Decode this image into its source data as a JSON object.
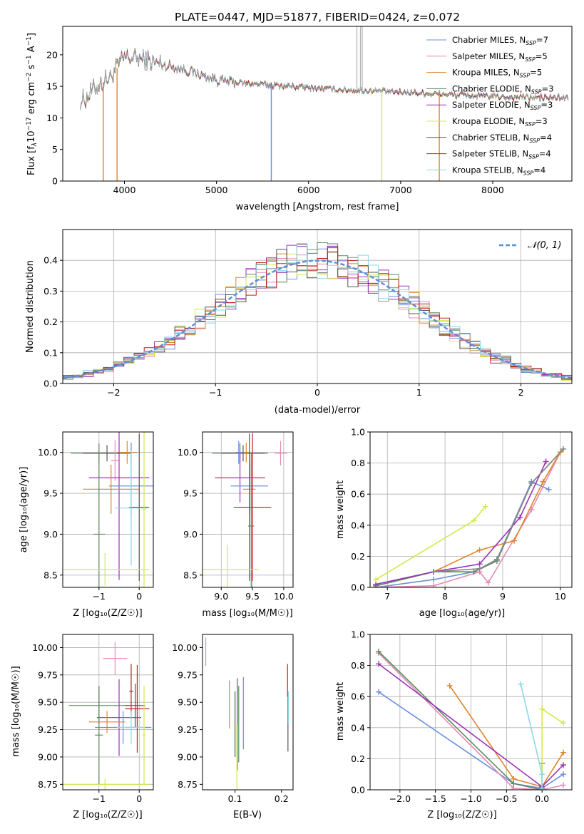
{
  "chart_data": [
    {
      "id": "spectrum",
      "type": "line",
      "title": "PLATE=0447, MJD=51877, FIBERID=0424, z=0.072",
      "xlabel": "wavelength [Angstrom, rest frame]",
      "ylabel_parts": [
        "Flux [f",
        "λ",
        "10",
        "−17",
        " erg cm",
        "−2",
        " s",
        "−1",
        " A",
        "−1",
        "]"
      ],
      "xlim": [
        3330,
        8860
      ],
      "ylim": [
        0,
        24.5
      ],
      "xticks": [
        4000,
        5000,
        6000,
        7000,
        8000
      ],
      "yticks": [
        0,
        5,
        10,
        15,
        20
      ],
      "grid": false,
      "legend_position": "top-right",
      "legend": [
        {
          "model": "Chabrier MILES",
          "nssp": "7",
          "color": "#6a8fdc"
        },
        {
          "model": "Salpeter MILES",
          "nssp": "5",
          "color": "#e58ab8"
        },
        {
          "model": "Kroupa MILES",
          "nssp": "5",
          "color": "#e0842a"
        },
        {
          "model": "Chabrier ELODIE",
          "nssp": "3",
          "color": "#5e8a5e"
        },
        {
          "model": "Salpeter ELODIE",
          "nssp": "3",
          "color": "#9a32b8"
        },
        {
          "model": "Kroupa ELODIE",
          "nssp": "3",
          "color": "#d4e84a"
        },
        {
          "model": "Chabrier STELIB",
          "nssp": "4",
          "color": "#555555"
        },
        {
          "model": "Salpeter STELIB",
          "nssp": "4",
          "color": "#c02020"
        },
        {
          "model": "Kroupa STELIB",
          "nssp": "4",
          "color": "#8ad8e8"
        }
      ],
      "continuum": {
        "x": [
          3550,
          3700,
          3850,
          4000,
          4150,
          4300,
          4500,
          4700,
          4900,
          5100,
          5300,
          5500,
          5700,
          6000,
          6300,
          6600,
          7000,
          7400,
          7800,
          8200,
          8600,
          8800
        ],
        "y": [
          12.8,
          15.0,
          16.5,
          19.5,
          19.5,
          18.8,
          18.2,
          17.5,
          16.4,
          15.8,
          15.5,
          15.3,
          15.1,
          14.8,
          14.5,
          14.3,
          14.1,
          13.8,
          13.5,
          13.3,
          13.2,
          13.2
        ]
      },
      "absorption_features": [
        {
          "x": 3770,
          "y": 0
        },
        {
          "x": 3920,
          "y": 0
        },
        {
          "x": 5595,
          "y": 0
        },
        {
          "x": 6795,
          "y": 0
        },
        {
          "x": 7420,
          "y": 0
        }
      ],
      "emission_features": [
        {
          "x": 6525,
          "y": 24.5
        },
        {
          "x": 6563,
          "y": 24.5
        },
        {
          "x": 6583,
          "y": 24.5
        }
      ]
    },
    {
      "id": "residuals",
      "type": "histogram",
      "xlabel": "(data-model)/error",
      "ylabel": "Normed distribution",
      "xlim": [
        -2.5,
        2.5
      ],
      "ylim": [
        0,
        0.5
      ],
      "xticks": [
        -2,
        -1,
        0,
        1,
        2
      ],
      "yticks": [
        0.0,
        0.1,
        0.2,
        0.3,
        0.4
      ],
      "grid": true,
      "legend_position": "top-right",
      "legend_label": "𝒩(0, 1)",
      "bin_width": 0.1
    },
    {
      "id": "age_vs_Z",
      "type": "scatter",
      "xlabel": "Z [log₁₀(Z/Z☉)]",
      "ylabel": "age  [log₁₀(age/yr)]",
      "xlim": [
        -1.9,
        0.35
      ],
      "ylim": [
        8.35,
        10.25
      ],
      "xticks": [
        -1,
        0
      ],
      "yticks": [
        8.5,
        9.0,
        9.5,
        10.0
      ],
      "grid": true,
      "points": [
        {
          "x": -1.0,
          "y": 9.99,
          "xerr": 0.7,
          "yerr": 0.12,
          "color": "#5e8a5e"
        },
        {
          "x": -0.8,
          "y": 9.99,
          "xerr": 0.6,
          "yerr": 0.1,
          "color": "#555555"
        },
        {
          "x": -0.2,
          "y": 10.0,
          "xerr": 0.15,
          "yerr": 0.12,
          "color": "#6a8fdc"
        },
        {
          "x": -0.3,
          "y": 10.0,
          "xerr": 0.25,
          "yerr": 0.14,
          "color": "#e0842a"
        },
        {
          "x": -0.6,
          "y": 9.9,
          "xerr": 0.1,
          "yerr": 0.25,
          "color": "#e58ab8"
        },
        {
          "x": -0.5,
          "y": 9.69,
          "xerr": 0.75,
          "yerr": 1.25,
          "color": "#9a32b8"
        },
        {
          "x": -0.2,
          "y": 9.59,
          "xerr": 0.55,
          "yerr": 0.4,
          "color": "#6a8fdc"
        },
        {
          "x": -0.7,
          "y": 9.55,
          "xerr": 0.7,
          "yerr": 0.3,
          "color": "#e0842a"
        },
        {
          "x": 0.0,
          "y": 9.33,
          "xerr": 0.25,
          "yerr": 0.9,
          "color": "#555555"
        },
        {
          "x": -0.2,
          "y": 9.32,
          "xerr": 0.4,
          "yerr": 0.7,
          "color": "#8ad8e8"
        },
        {
          "x": -1.0,
          "y": 9.0,
          "xerr": 0.15,
          "yerr": 1.0,
          "color": "#5e8a5e"
        },
        {
          "x": -0.85,
          "y": 8.57,
          "xerr": 1.1,
          "yerr": 0.2,
          "color": "#d4e84a"
        },
        {
          "x": 0.12,
          "y": 9.3,
          "xerr": 0.05,
          "yerr": 0.95,
          "color": "#d4e84a"
        }
      ]
    },
    {
      "id": "age_vs_mass",
      "type": "scatter",
      "xlabel": "mass [log₁₀(M/M☉)]",
      "ylabel": "",
      "xlim": [
        8.7,
        10.15
      ],
      "ylim": [
        8.35,
        10.25
      ],
      "xticks": [
        9.0,
        9.5,
        10.0
      ],
      "yticks": [
        8.5,
        9.0,
        9.5,
        10.0
      ],
      "grid": true,
      "points": [
        {
          "x": 9.3,
          "y": 9.99,
          "xerr": 0.45,
          "yerr": 0.12,
          "color": "#5e8a5e"
        },
        {
          "x": 9.35,
          "y": 9.99,
          "xerr": 0.35,
          "yerr": 0.1,
          "color": "#555555"
        },
        {
          "x": 9.95,
          "y": 9.99,
          "xerr": 0.1,
          "yerr": 0.15,
          "color": "#e58ab8"
        },
        {
          "x": 9.28,
          "y": 10.0,
          "xerr": 0.05,
          "yerr": 0.14,
          "color": "#6a8fdc"
        },
        {
          "x": 9.4,
          "y": 10.0,
          "xerr": 0.05,
          "yerr": 0.12,
          "color": "#e0842a"
        },
        {
          "x": 9.3,
          "y": 9.69,
          "xerr": 0.4,
          "yerr": 0.3,
          "color": "#9a32b8"
        },
        {
          "x": 9.45,
          "y": 9.59,
          "xerr": 0.3,
          "yerr": 0.3,
          "color": "#6a8fdc"
        },
        {
          "x": 9.45,
          "y": 9.55,
          "xerr": 0.1,
          "yerr": 0.3,
          "color": "#e0842a"
        },
        {
          "x": 9.5,
          "y": 9.33,
          "xerr": 0.3,
          "yerr": 0.9,
          "color": "#c02020"
        },
        {
          "x": 9.45,
          "y": 9.33,
          "xerr": 0.2,
          "yerr": 0.9,
          "color": "#555555"
        },
        {
          "x": 9.48,
          "y": 9.1,
          "xerr": 0.05,
          "yerr": 0.9,
          "color": "#5e8a5e"
        },
        {
          "x": 9.1,
          "y": 8.57,
          "xerr": 0.5,
          "yerr": 0.3,
          "color": "#d4e84a"
        }
      ]
    },
    {
      "id": "massweight_vs_age",
      "type": "line",
      "xlabel": "age  [log₁₀(age/yr)]",
      "ylabel": "mass weight",
      "xlim": [
        6.7,
        10.2
      ],
      "ylim": [
        0,
        1.0
      ],
      "xticks": [
        7,
        8,
        9,
        10
      ],
      "yticks": [
        0.0,
        0.2,
        0.4,
        0.6,
        0.8,
        1.0
      ],
      "grid": true,
      "series": [
        {
          "color": "#6a8fdc",
          "x": [
            6.8,
            7.8,
            8.5,
            8.9,
            9.5,
            9.8
          ],
          "y": [
            0.0,
            0.05,
            0.1,
            0.18,
            0.68,
            0.63
          ]
        },
        {
          "color": "#e58ab8",
          "x": [
            6.8,
            7.8,
            8.6,
            8.75,
            9.5,
            10.0
          ],
          "y": [
            0.0,
            0.01,
            0.1,
            0.03,
            0.5,
            0.87
          ]
        },
        {
          "color": "#e0842a",
          "x": [
            6.8,
            7.8,
            8.6,
            9.2,
            9.7,
            10.0
          ],
          "y": [
            0.01,
            0.1,
            0.24,
            0.3,
            0.68,
            0.87
          ]
        },
        {
          "color": "#5e8a5e",
          "x": [
            6.8,
            7.8,
            8.5,
            8.9,
            9.5,
            10.05
          ],
          "y": [
            0.01,
            0.1,
            0.1,
            0.17,
            0.67,
            0.89
          ]
        },
        {
          "color": "#9a32b8",
          "x": [
            6.8,
            7.8,
            8.6,
            9.3,
            9.75
          ],
          "y": [
            0.02,
            0.1,
            0.15,
            0.45,
            0.81
          ]
        },
        {
          "color": "#d4e84a",
          "x": [
            6.8,
            8.5,
            8.7
          ],
          "y": [
            0.05,
            0.43,
            0.52
          ]
        },
        {
          "color": "#888888",
          "x": [
            7.8,
            8.6,
            8.9,
            9.5,
            10.05
          ],
          "y": [
            0.1,
            0.12,
            0.18,
            0.67,
            0.89
          ]
        }
      ]
    },
    {
      "id": "mass_vs_Z",
      "type": "scatter",
      "xlabel": "Z [log₁₀(Z/Z☉)]",
      "ylabel": "mass [log₁₀(M/M☉)]",
      "xlim": [
        -1.9,
        0.35
      ],
      "ylim": [
        8.7,
        10.12
      ],
      "xticks": [
        -1,
        0
      ],
      "yticks": [
        8.75,
        9.0,
        9.25,
        9.5,
        9.75,
        10.0
      ],
      "grid": true,
      "points": [
        {
          "x": -0.6,
          "y": 9.9,
          "xerr": 0.3,
          "yerr": 0.15,
          "color": "#e58ab8"
        },
        {
          "x": -0.2,
          "y": 9.6,
          "xerr": 0.05,
          "yerr": 0.25,
          "color": "#c02020"
        },
        {
          "x": -1.0,
          "y": 9.47,
          "xerr": 0.75,
          "yerr": 0.17,
          "color": "#5e8a5e"
        },
        {
          "x": -0.1,
          "y": 9.47,
          "xerr": 0.25,
          "yerr": 0.2,
          "color": "#555555"
        },
        {
          "x": -0.05,
          "y": 9.44,
          "xerr": 0.3,
          "yerr": 0.4,
          "color": "#c02020"
        },
        {
          "x": -0.5,
          "y": 9.36,
          "xerr": 0.55,
          "yerr": 0.35,
          "color": "#9a32b8"
        },
        {
          "x": -0.8,
          "y": 9.32,
          "xerr": 0.45,
          "yerr": 0.1,
          "color": "#e0842a"
        },
        {
          "x": -0.4,
          "y": 9.27,
          "xerr": 0.7,
          "yerr": 0.15,
          "color": "#6a8fdc"
        },
        {
          "x": -0.2,
          "y": 9.27,
          "xerr": 0.35,
          "yerr": 0.15,
          "color": "#8ad8e8"
        },
        {
          "x": -1.0,
          "y": 9.2,
          "xerr": 0.1,
          "yerr": 0.45,
          "color": "#5e8a5e"
        },
        {
          "x": -0.85,
          "y": 8.75,
          "xerr": 1.1,
          "yerr": 0.05,
          "color": "#d4e84a"
        },
        {
          "x": 0.12,
          "y": 9.2,
          "xerr": 0.04,
          "yerr": 0.45,
          "color": "#d4e84a"
        }
      ]
    },
    {
      "id": "mass_vs_ebv",
      "type": "scatter",
      "xlabel": "E(B-V)",
      "ylabel": "",
      "xlim": [
        0.03,
        0.225
      ],
      "ylim": [
        8.7,
        10.12
      ],
      "xticks": [
        0.1,
        0.2
      ],
      "yticks": [
        8.75,
        9.0,
        9.25,
        9.5,
        9.75,
        10.0
      ],
      "grid": false,
      "points": [
        {
          "x": 0.037,
          "y": 9.96,
          "xerr": 0.0,
          "yerr": 0.13,
          "color": "#e58ab8"
        },
        {
          "x": 0.088,
          "y": 9.48,
          "xerr": 0.0,
          "yerr": 0.22,
          "color": "#e0842a"
        },
        {
          "x": 0.1,
          "y": 9.3,
          "xerr": 0.0,
          "yerr": 0.3,
          "color": "#555555"
        },
        {
          "x": 0.105,
          "y": 9.3,
          "xerr": 0.0,
          "yerr": 0.42,
          "color": "#9a32b8"
        },
        {
          "x": 0.104,
          "y": 9.0,
          "xerr": 0.0,
          "yerr": 0.3,
          "color": "#d4e84a"
        },
        {
          "x": 0.108,
          "y": 9.3,
          "xerr": 0.0,
          "yerr": 0.35,
          "color": "#5e8a5e"
        },
        {
          "x": 0.118,
          "y": 9.4,
          "xerr": 0.0,
          "yerr": 0.33,
          "color": "#6a8fdc"
        },
        {
          "x": 0.213,
          "y": 9.7,
          "xerr": 0.0,
          "yerr": 0.15,
          "color": "#c02020"
        },
        {
          "x": 0.214,
          "y": 9.3,
          "xerr": 0.0,
          "yerr": 0.25,
          "color": "#555555"
        },
        {
          "x": 0.215,
          "y": 9.45,
          "xerr": 0.0,
          "yerr": 0.15,
          "color": "#8ad8e8"
        }
      ]
    },
    {
      "id": "massweight_vs_Z",
      "type": "line",
      "xlabel": "Z [log₁₀(Z/Z☉)]",
      "ylabel": "mass weight",
      "xlim": [
        -2.42,
        0.42
      ],
      "ylim": [
        0,
        1.0
      ],
      "xticks": [
        -2.0,
        -1.5,
        -1.0,
        -0.5,
        0.0
      ],
      "yticks": [
        0.0,
        0.2,
        0.4,
        0.6,
        0.8,
        1.0
      ],
      "grid": true,
      "series": [
        {
          "color": "#6a8fdc",
          "x": [
            -2.3,
            -0.4,
            0.0,
            0.3
          ],
          "y": [
            0.63,
            0.04,
            0.01,
            0.1
          ]
        },
        {
          "color": "#e58ab8",
          "x": [
            -2.3,
            -0.4,
            0.0,
            0.3
          ],
          "y": [
            0.88,
            0.01,
            0.0,
            0.03
          ]
        },
        {
          "color": "#e0842a",
          "x": [
            -1.3,
            -0.4,
            0.0,
            0.3
          ],
          "y": [
            0.67,
            0.07,
            0.02,
            0.24
          ]
        },
        {
          "color": "#5e8a5e",
          "x": [
            -2.3,
            -0.4,
            0.0,
            0.0
          ],
          "y": [
            0.89,
            0.04,
            0.0,
            0.17
          ]
        },
        {
          "color": "#9a32b8",
          "x": [
            -2.3,
            0.0,
            0.3
          ],
          "y": [
            0.81,
            0.02,
            0.16
          ]
        },
        {
          "color": "#d4e84a",
          "x": [
            0.0,
            0.0,
            0.3
          ],
          "y": [
            0.0,
            0.52,
            0.43
          ]
        },
        {
          "color": "#8ad8e8",
          "x": [
            -0.3,
            0.0,
            0.0
          ],
          "y": [
            0.68,
            0.1,
            0.0
          ]
        }
      ]
    }
  ]
}
